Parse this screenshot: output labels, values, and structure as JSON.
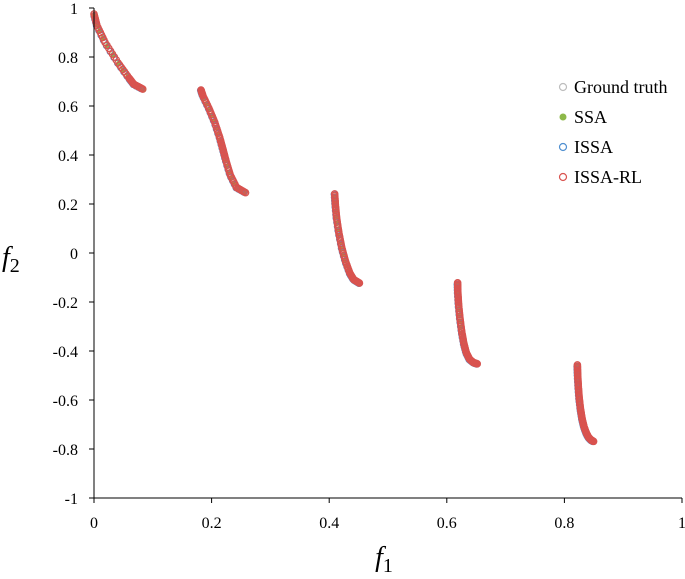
{
  "chart_data": {
    "type": "scatter",
    "xlabel": "f",
    "xlabel_sub": "1",
    "ylabel": "f",
    "ylabel_sub": "2",
    "xlim": [
      0,
      1
    ],
    "ylim": [
      -1,
      1
    ],
    "xticks": [
      0,
      0.2,
      0.4,
      0.6,
      0.8,
      1
    ],
    "xtick_labels": [
      "0",
      "0.2",
      "0.4",
      "0.6",
      "0.8",
      "1"
    ],
    "yticks": [
      -1,
      -0.8,
      -0.6,
      -0.4,
      -0.2,
      0,
      0.2,
      0.4,
      0.6,
      0.8,
      1
    ],
    "ytick_labels": [
      "-1",
      "-0.8",
      "-0.6",
      "-0.4",
      "-0.2",
      "0",
      "0.2",
      "0.4",
      "0.6",
      "0.8",
      "1"
    ],
    "grid": false,
    "legend_position": "right",
    "segments": [
      {
        "x": [
          0.0,
          0.0049,
          0.0188,
          0.041,
          0.0596,
          0.0677,
          0.0829
        ],
        "y": [
          0.9754,
          0.9297,
          0.8596,
          0.7758,
          0.7139,
          0.6887,
          0.6693
        ]
      },
      {
        "x": [
          0.182,
          0.1851,
          0.1955,
          0.2053,
          0.2138,
          0.2193,
          0.2246,
          0.2319,
          0.2424,
          0.2577
        ],
        "y": [
          0.6653,
          0.6421,
          0.59,
          0.5335,
          0.4715,
          0.4233,
          0.3754,
          0.3175,
          0.2673,
          0.2464
        ]
      },
      {
        "x": [
          0.4093,
          0.4105,
          0.4126,
          0.4163,
          0.4215,
          0.4277,
          0.4352,
          0.4417,
          0.4514
        ],
        "y": [
          0.2412,
          0.1971,
          0.1436,
          0.0843,
          0.0208,
          -0.0341,
          -0.0828,
          -0.1087,
          -0.1228
        ]
      },
      {
        "x": [
          0.6184,
          0.6188,
          0.6201,
          0.6224,
          0.6255,
          0.6291,
          0.6331,
          0.6386,
          0.6455,
          0.6517
        ],
        "y": [
          -0.1216,
          -0.1615,
          -0.2112,
          -0.2668,
          -0.3223,
          -0.3708,
          -0.4069,
          -0.4336,
          -0.4475,
          -0.4523
        ]
      },
      {
        "x": [
          0.8221,
          0.8226,
          0.8237,
          0.8252,
          0.8274,
          0.8301,
          0.8335,
          0.8373,
          0.8411,
          0.8456,
          0.8496
        ],
        "y": [
          -0.4567,
          -0.4981,
          -0.5452,
          -0.593,
          -0.6371,
          -0.6768,
          -0.7108,
          -0.7351,
          -0.7526,
          -0.7638,
          -0.7689
        ]
      }
    ],
    "series": [
      {
        "name": "Ground truth",
        "marker": "open-circle",
        "color": "#bdbdbd"
      },
      {
        "name": "SSA",
        "marker": "filled-circle",
        "color": "#8db849"
      },
      {
        "name": "ISSA",
        "marker": "open-circle",
        "color": "#4f8fd0"
      },
      {
        "name": "ISSA-RL",
        "marker": "open-circle",
        "color": "#d9534f"
      }
    ]
  }
}
